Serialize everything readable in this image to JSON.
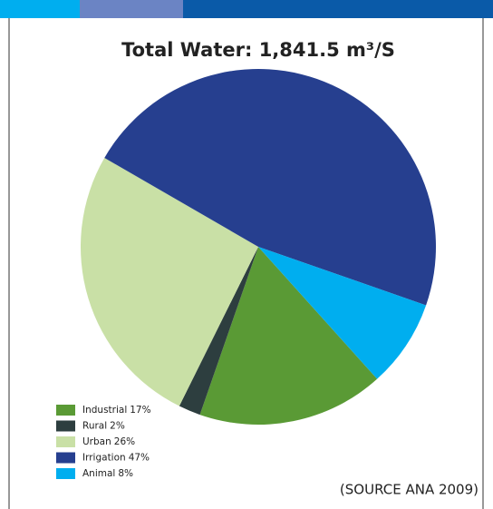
{
  "chart_data": {
    "type": "pie",
    "title": "Total Water: 1,841.5 m³/S",
    "categories": [
      "Industrial",
      "Rural",
      "Urban",
      "Irrigation",
      "Animal"
    ],
    "values": [
      17,
      2,
      26,
      47,
      8
    ],
    "value_labels": [
      "17%",
      "2%",
      "26%",
      "47%",
      "8%"
    ],
    "colors": [
      "#5a9a35",
      "#2d3e3f",
      "#c9e0a6",
      "#263f8f",
      "#00aeef"
    ],
    "annotation": "(SOURCE ANA 2009)",
    "legend": "lower-left"
  }
}
